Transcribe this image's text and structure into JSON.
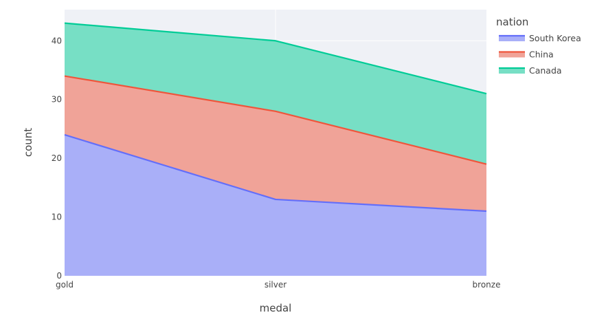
{
  "chart_data": {
    "type": "area",
    "stacked": true,
    "categories": [
      "gold",
      "silver",
      "bronze"
    ],
    "series": [
      {
        "name": "South Korea",
        "values": [
          24,
          13,
          11
        ],
        "line_color": "#636efa",
        "fill_color": "#a9aff8"
      },
      {
        "name": "China",
        "values": [
          10,
          15,
          8
        ],
        "line_color": "#ef553b",
        "fill_color": "#f0a398"
      },
      {
        "name": "Canada",
        "values": [
          9,
          12,
          12
        ],
        "line_color": "#00cc96",
        "fill_color": "#77dfc5"
      }
    ],
    "cumulative": {
      "South Korea": [
        24,
        13,
        11
      ],
      "China": [
        34,
        28,
        19
      ],
      "Canada": [
        43,
        40,
        31
      ]
    },
    "title": "",
    "xlabel": "medal",
    "ylabel": "count",
    "ylim": [
      0,
      45.3
    ],
    "yticks": [
      0,
      10,
      20,
      30,
      40
    ],
    "grid": true,
    "legend_title": "nation",
    "legend_position": "right",
    "plot_bgcolor": "#e5ecf6"
  }
}
